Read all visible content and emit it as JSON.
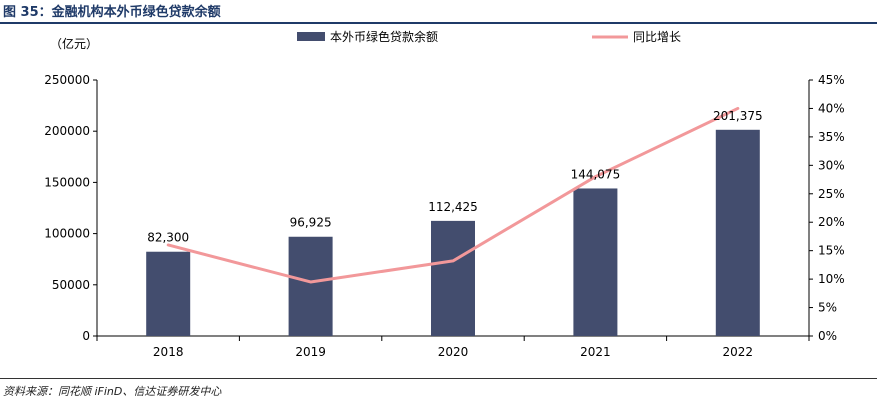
{
  "header": {
    "title": "图 35：金融机构本外币绿色贷款余额"
  },
  "footer": {
    "source": "资料来源：同花顺 iFinD、信达证券研发中心"
  },
  "colors": {
    "bar": "#434d6e",
    "line": "#f2989a",
    "title": "#1f3a68"
  },
  "chart_data": {
    "type": "bar",
    "categories": [
      "2018",
      "2019",
      "2020",
      "2021",
      "2022"
    ],
    "unit_label": "（亿元）",
    "series": [
      {
        "name": "本外币绿色贷款余额",
        "type": "bar",
        "axis": "left",
        "values": [
          82300,
          96925,
          112425,
          144075,
          201375
        ]
      },
      {
        "name": "同比增长",
        "type": "line",
        "axis": "right",
        "values": [
          16.0,
          9.5,
          13.2,
          28.0,
          40.0
        ]
      }
    ],
    "data_labels": [
      "82,300",
      "96,925",
      "112,425",
      "144,075",
      "201,375"
    ],
    "y_left": {
      "min": 0,
      "max": 250000,
      "ticks": [
        "0",
        "50000",
        "100000",
        "150000",
        "200000",
        "250000"
      ]
    },
    "y_right": {
      "min": 0,
      "max": 45,
      "ticks": [
        "0%",
        "5%",
        "10%",
        "15%",
        "20%",
        "25%",
        "30%",
        "35%",
        "40%",
        "45%"
      ]
    },
    "legend_position": "top",
    "grid": false
  }
}
